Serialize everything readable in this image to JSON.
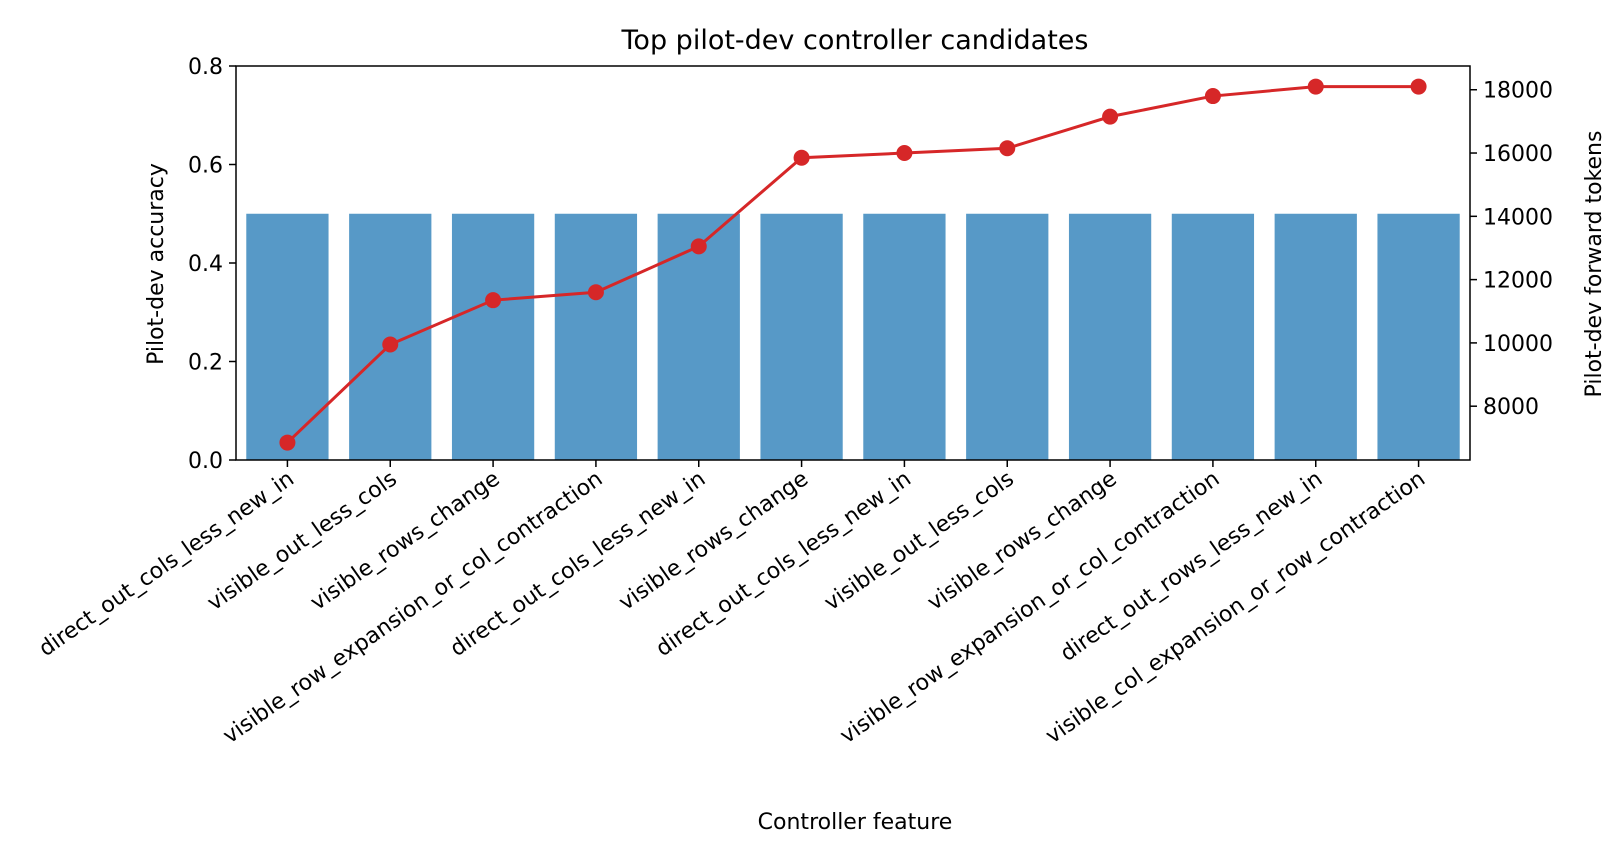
{
  "chart_data": {
    "type": "bar",
    "title": "Top pilot-dev controller candidates",
    "xlabel": "Controller feature",
    "ylabel": "Pilot-dev accuracy",
    "y2label": "Pilot-dev forward tokens",
    "ylim": [
      0,
      0.8
    ],
    "y2lim": [
      6300,
      18750
    ],
    "yticks": [
      "0.0",
      "0.2",
      "0.4",
      "0.6",
      "0.8"
    ],
    "y2ticks": [
      "8000",
      "10000",
      "12000",
      "14000",
      "16000",
      "18000"
    ],
    "grid": false,
    "categories": [
      "direct_out_cols_less_new_in",
      "visible_out_less_cols",
      "visible_rows_change",
      "visible_row_expansion_or_col_contraction",
      "direct_out_cols_less_new_in",
      "visible_rows_change",
      "direct_out_cols_less_new_in",
      "visible_out_less_cols",
      "visible_rows_change",
      "visible_row_expansion_or_col_contraction",
      "direct_out_rows_less_new_in",
      "visible_col_expansion_or_row_contraction"
    ],
    "series": [
      {
        "kind": "bar",
        "axis": "left",
        "color": "#5799c7",
        "values": [
          0.5,
          0.5,
          0.5,
          0.5,
          0.5,
          0.5,
          0.5,
          0.5,
          0.5,
          0.5,
          0.5,
          0.5
        ]
      },
      {
        "kind": "line",
        "axis": "right",
        "color": "#d62728",
        "values": [
          6850,
          9950,
          11350,
          11600,
          13050,
          15850,
          16000,
          16150,
          17150,
          17800,
          18100,
          18100
        ]
      }
    ]
  }
}
